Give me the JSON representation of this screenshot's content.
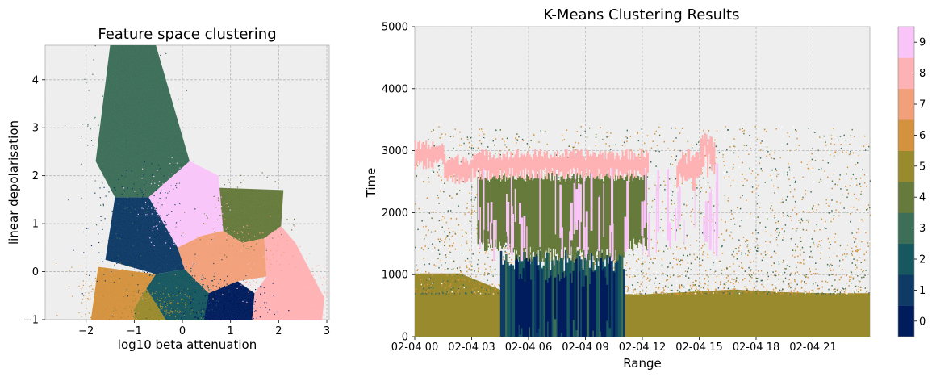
{
  "colors": {
    "background": "#ffffff",
    "axes_face": "#eeeeee",
    "clusters": [
      "#001c5c",
      "#0e3a66",
      "#17575f",
      "#3c6e58",
      "#667a3c",
      "#9a8a2e",
      "#d4923e",
      "#f2a07a",
      "#ffb2b4",
      "#f9c5f9"
    ]
  },
  "chart_data": [
    {
      "type": "scatter",
      "title": "Feature space clustering",
      "xlabel": "log10 beta attenuation",
      "ylabel": "linear depolarisation",
      "xlim": [
        -2.85,
        3.05
      ],
      "ylim": [
        -1.0,
        4.72
      ],
      "xticks": [
        -2,
        -1,
        0,
        1,
        2,
        3
      ],
      "yticks": [
        -1,
        0,
        1,
        2,
        3,
        4
      ],
      "grid": true,
      "clusters": [
        {
          "label": "0",
          "color": "#001c5c",
          "center": [
            0.95,
            -0.72
          ],
          "spread": [
            0.45,
            0.28
          ],
          "region": [
            [
              0.45,
              -1.0
            ],
            [
              1.45,
              -1.0
            ],
            [
              1.5,
              -0.45
            ],
            [
              1.15,
              -0.2
            ],
            [
              0.5,
              -0.45
            ]
          ]
        },
        {
          "label": "1",
          "color": "#0e3a66",
          "center": [
            -0.95,
            0.95
          ],
          "spread": [
            0.5,
            0.55
          ],
          "region": [
            [
              -1.4,
              1.55
            ],
            [
              -0.7,
              1.55
            ],
            [
              -0.1,
              0.5
            ],
            [
              0.05,
              0.05
            ],
            [
              -0.55,
              -0.05
            ],
            [
              -1.6,
              0.25
            ]
          ]
        },
        {
          "label": "2",
          "color": "#17575f",
          "center": [
            0.0,
            -0.45
          ],
          "spread": [
            0.4,
            0.35
          ],
          "region": [
            [
              -0.55,
              -0.05
            ],
            [
              0.05,
              0.05
            ],
            [
              0.55,
              -0.45
            ],
            [
              0.45,
              -1.0
            ],
            [
              -0.35,
              -1.0
            ],
            [
              -0.75,
              -0.35
            ]
          ]
        },
        {
          "label": "3",
          "color": "#3c6e58",
          "center": [
            -1.1,
            2.7
          ],
          "spread": [
            0.45,
            0.9
          ],
          "region": [
            [
              -1.5,
              4.72
            ],
            [
              -0.55,
              4.72
            ],
            [
              0.15,
              2.3
            ],
            [
              -0.7,
              1.55
            ],
            [
              -1.4,
              1.55
            ],
            [
              -1.8,
              2.3
            ]
          ]
        },
        {
          "label": "4",
          "color": "#667a3c",
          "center": [
            1.35,
            1.2
          ],
          "spread": [
            0.35,
            0.3
          ],
          "region": [
            [
              0.7,
              1.75
            ],
            [
              2.1,
              1.7
            ],
            [
              2.05,
              0.95
            ],
            [
              1.7,
              0.7
            ],
            [
              1.25,
              0.6
            ],
            [
              0.85,
              0.85
            ]
          ]
        },
        {
          "label": "5",
          "color": "#9a8a2e",
          "center": [
            -0.6,
            -0.75
          ],
          "spread": [
            0.35,
            0.2
          ],
          "region": [
            [
              -1.0,
              -1.0
            ],
            [
              -0.35,
              -1.0
            ],
            [
              -0.75,
              -0.35
            ],
            [
              -1.0,
              -0.75
            ]
          ]
        },
        {
          "label": "6",
          "color": "#d4923e",
          "center": [
            -1.45,
            -0.45
          ],
          "spread": [
            0.35,
            0.3
          ],
          "region": [
            [
              -1.75,
              0.1
            ],
            [
              -0.55,
              -0.05
            ],
            [
              -0.75,
              -0.35
            ],
            [
              -1.0,
              -0.75
            ],
            [
              -1.0,
              -1.0
            ],
            [
              -1.9,
              -1.0
            ]
          ]
        },
        {
          "label": "7",
          "color": "#f2a07a",
          "center": [
            1.1,
            0.35
          ],
          "spread": [
            0.45,
            0.3
          ],
          "region": [
            [
              0.05,
              0.05
            ],
            [
              0.55,
              -0.45
            ],
            [
              1.15,
              -0.2
            ],
            [
              1.75,
              -0.1
            ],
            [
              1.7,
              0.7
            ],
            [
              1.25,
              0.6
            ],
            [
              0.85,
              0.85
            ],
            [
              0.4,
              0.75
            ],
            [
              -0.1,
              0.5
            ]
          ]
        },
        {
          "label": "8",
          "color": "#ffb2b4",
          "center": [
            2.15,
            -0.3
          ],
          "spread": [
            0.45,
            0.35
          ],
          "region": [
            [
              1.75,
              -0.1
            ],
            [
              1.7,
              0.7
            ],
            [
              2.05,
              0.95
            ],
            [
              2.35,
              0.6
            ],
            [
              2.95,
              -0.55
            ],
            [
              2.9,
              -1.0
            ],
            [
              1.45,
              -1.0
            ],
            [
              1.5,
              -0.45
            ]
          ]
        },
        {
          "label": "9",
          "color": "#f9c5f9",
          "center": [
            -0.05,
            1.4
          ],
          "spread": [
            0.4,
            0.4
          ],
          "region": [
            [
              -0.7,
              1.55
            ],
            [
              0.15,
              2.3
            ],
            [
              0.75,
              2.0
            ],
            [
              0.85,
              0.85
            ],
            [
              0.4,
              0.75
            ],
            [
              -0.1,
              0.5
            ]
          ]
        }
      ]
    },
    {
      "type": "heatmap",
      "title": "K-Means Clustering Results",
      "xlabel": "Range",
      "ylabel": "Time",
      "xlim": [
        0,
        24
      ],
      "ylim": [
        0,
        5000
      ],
      "xticks": [
        0,
        3,
        6,
        9,
        12,
        15,
        18,
        21
      ],
      "xticklabels": [
        "02-04 00",
        "02-04 03",
        "02-04 06",
        "02-04 09",
        "02-04 12",
        "02-04 15",
        "02-04 18",
        "02-04 21"
      ],
      "yticks": [
        0,
        1000,
        2000,
        3000,
        4000,
        5000
      ],
      "grid": true,
      "colorbar": {
        "ticks": [
          0,
          1,
          2,
          3,
          4,
          5,
          6,
          7,
          8,
          9
        ]
      },
      "layers": [
        {
          "cluster": 5,
          "description": "surface layer",
          "x": [
            0,
            24
          ],
          "top": [
            1020,
            1020,
            720,
            700,
            700,
            680,
            720,
            760,
            720,
            700,
            700
          ]
        },
        {
          "cluster": 6,
          "description": "speckled noise",
          "x": [
            0,
            24
          ],
          "from": 700,
          "to": 3400
        },
        {
          "cluster": 4,
          "description": "main cloud",
          "x": [
            3.3,
            12.2
          ],
          "bottom": 1200,
          "top": 2650
        },
        {
          "cluster": 8,
          "description": "cloud top",
          "x": [
            0,
            15.8
          ],
          "bottom": 2500,
          "top": 3100
        },
        {
          "cluster": 9,
          "description": "ice streaks",
          "x": [
            3.3,
            16
          ],
          "bottom": 1200,
          "top": 2800
        },
        {
          "cluster": 0,
          "description": "dense core",
          "x": [
            5.2,
            10.5
          ],
          "bottom": 0,
          "top": 1300
        },
        {
          "cluster": 2,
          "description": "precipitation column",
          "x": [
            4.5,
            11
          ],
          "bottom": 0,
          "top": 1400
        }
      ]
    }
  ]
}
